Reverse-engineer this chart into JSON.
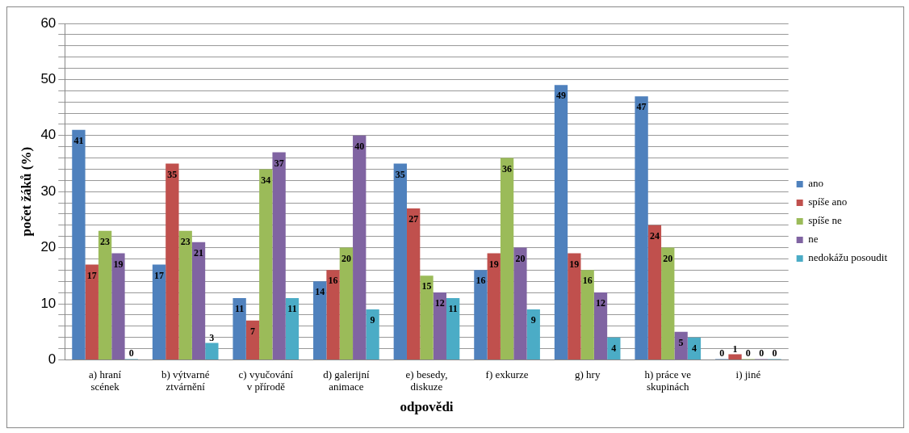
{
  "chart_data": {
    "type": "bar",
    "xlabel": "odpovědi",
    "ylabel": "počet žáků (%)",
    "categories": [
      "a) hraní scének",
      "b) výtvarné ztvárnění",
      "c) vyučování v přírodě",
      "d) galerijní animace",
      "e) besedy, diskuze",
      "f) exkurze",
      "g) hry",
      "h) práce ve skupinách",
      "i) jiné"
    ],
    "series": [
      {
        "name": "ano",
        "color": "#4f81bd",
        "values": [
          41,
          17,
          11,
          14,
          35,
          16,
          49,
          47,
          0
        ]
      },
      {
        "name": "spíše ano",
        "color": "#c0504d",
        "values": [
          17,
          35,
          7,
          16,
          27,
          19,
          19,
          24,
          1
        ]
      },
      {
        "name": "spíše ne",
        "color": "#9bbb59",
        "values": [
          23,
          23,
          34,
          20,
          15,
          36,
          16,
          20,
          0
        ]
      },
      {
        "name": "ne",
        "color": "#8064a2",
        "values": [
          19,
          21,
          37,
          40,
          12,
          20,
          12,
          5,
          0
        ]
      },
      {
        "name": "nedokážu posoudit",
        "color": "#4bacc6",
        "values": [
          0,
          3,
          11,
          9,
          11,
          9,
          4,
          4,
          0
        ]
      }
    ],
    "ylim": [
      0,
      60
    ],
    "yticks": [
      0,
      {
        "value": 2,
        "label": null
      },
      {
        "value": 4,
        "label": null
      },
      {
        "value": 6,
        "label": null
      },
      {
        "value": 8,
        "label": null
      },
      10,
      {
        "value": 12,
        "label": null
      },
      {
        "value": 14,
        "label": null
      },
      {
        "value": 16,
        "label": null
      },
      {
        "value": 18,
        "label": null
      },
      20,
      {
        "value": 22,
        "label": null
      },
      {
        "value": 24,
        "label": null
      },
      {
        "value": 26,
        "label": null
      },
      {
        "value": 28,
        "label": null
      },
      30,
      {
        "value": 32,
        "label": null
      },
      {
        "value": 34,
        "label": null
      },
      {
        "value": 36,
        "label": null
      },
      {
        "value": 38,
        "label": null
      },
      40,
      {
        "value": 42,
        "label": null
      },
      {
        "value": 44,
        "label": null
      },
      {
        "value": 46,
        "label": null
      },
      {
        "value": 48,
        "label": null
      },
      50,
      {
        "value": 52,
        "label": null
      },
      {
        "value": 54,
        "label": null
      },
      {
        "value": 56,
        "label": null
      },
      {
        "value": 58,
        "label": null
      },
      60
    ],
    "grid": "y",
    "legend": "right",
    "data_labels": true
  }
}
